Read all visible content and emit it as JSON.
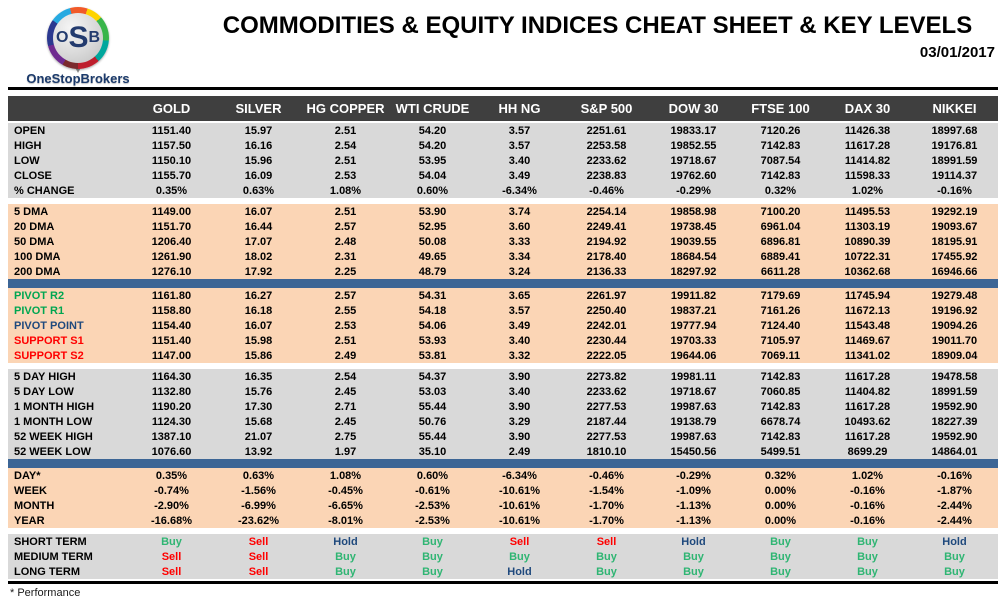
{
  "logo": {
    "o": "O",
    "s": "S",
    "b": "B",
    "brand": "OneStopBrokers"
  },
  "header": {
    "title": "COMMODITIES & EQUITY INDICES CHEAT SHEET & KEY LEVELS",
    "date": "03/01/2017"
  },
  "colors": {
    "header_bg": "#3F3F3F",
    "gray": "#D9D9D9",
    "peach": "#FBD5B5",
    "bar_blue": "#3C6595",
    "green": "#00A651",
    "signal_green": "#2FB573",
    "red": "#FF0000",
    "navy": "#1F497D"
  },
  "table": {
    "columns": [
      "GOLD",
      "SILVER",
      "HG COPPER",
      "WTI CRUDE",
      "HH NG",
      "S&P 500",
      "DOW 30",
      "FTSE 100",
      "DAX 30",
      "NIKKEI"
    ],
    "signal_colors": {
      "Buy": "signal_green",
      "Sell": "red",
      "Hold": "navy"
    },
    "sections": [
      {
        "id": "price",
        "bg": "gray",
        "after": "gap",
        "rows": [
          {
            "label": "OPEN",
            "values": [
              "1151.40",
              "15.97",
              "2.51",
              "54.20",
              "3.57",
              "2251.61",
              "19833.17",
              "7120.26",
              "11426.38",
              "18997.68"
            ]
          },
          {
            "label": "HIGH",
            "values": [
              "1157.50",
              "16.16",
              "2.54",
              "54.20",
              "3.57",
              "2253.58",
              "19852.55",
              "7142.83",
              "11617.28",
              "19176.81"
            ]
          },
          {
            "label": "LOW",
            "values": [
              "1150.10",
              "15.96",
              "2.51",
              "53.95",
              "3.40",
              "2233.62",
              "19718.67",
              "7087.54",
              "11414.82",
              "18991.59"
            ]
          },
          {
            "label": "CLOSE",
            "values": [
              "1155.70",
              "16.09",
              "2.53",
              "54.04",
              "3.49",
              "2238.83",
              "19762.60",
              "7142.83",
              "11598.33",
              "19114.37"
            ]
          },
          {
            "label": "% CHANGE",
            "values": [
              "0.35%",
              "0.63%",
              "1.08%",
              "0.60%",
              "-6.34%",
              "-0.46%",
              "-0.29%",
              "0.32%",
              "1.02%",
              "-0.16%"
            ]
          }
        ]
      },
      {
        "id": "dma",
        "bg": "peach",
        "after": "bar",
        "rows": [
          {
            "label": "5 DMA",
            "values": [
              "1149.00",
              "16.07",
              "2.51",
              "53.90",
              "3.74",
              "2254.14",
              "19858.98",
              "7100.20",
              "11495.53",
              "19292.19"
            ]
          },
          {
            "label": "20 DMA",
            "values": [
              "1151.70",
              "16.44",
              "2.57",
              "52.95",
              "3.60",
              "2249.41",
              "19738.45",
              "6961.04",
              "11303.19",
              "19093.67"
            ]
          },
          {
            "label": "50 DMA",
            "values": [
              "1206.40",
              "17.07",
              "2.48",
              "50.08",
              "3.33",
              "2194.92",
              "19039.55",
              "6896.81",
              "10890.39",
              "18195.91"
            ]
          },
          {
            "label": "100 DMA",
            "values": [
              "1261.90",
              "18.02",
              "2.31",
              "49.65",
              "3.34",
              "2178.40",
              "18684.54",
              "6889.41",
              "10722.31",
              "17455.92"
            ]
          },
          {
            "label": "200 DMA",
            "values": [
              "1276.10",
              "17.92",
              "2.25",
              "48.79",
              "3.24",
              "2136.33",
              "18297.92",
              "6611.28",
              "10362.68",
              "16946.66"
            ]
          }
        ]
      },
      {
        "id": "pivots",
        "bg": "peach",
        "after": "gap",
        "rows": [
          {
            "label": "PIVOT R2",
            "label_color": "green",
            "values": [
              "1161.80",
              "16.27",
              "2.57",
              "54.31",
              "3.65",
              "2261.97",
              "19911.82",
              "7179.69",
              "11745.94",
              "19279.48"
            ]
          },
          {
            "label": "PIVOT R1",
            "label_color": "green",
            "values": [
              "1158.80",
              "16.18",
              "2.55",
              "54.18",
              "3.57",
              "2250.40",
              "19837.21",
              "7161.26",
              "11672.13",
              "19196.92"
            ]
          },
          {
            "label": "PIVOT POINT",
            "label_color": "navy",
            "values": [
              "1154.40",
              "16.07",
              "2.53",
              "54.06",
              "3.49",
              "2242.01",
              "19777.94",
              "7124.40",
              "11543.48",
              "19094.26"
            ]
          },
          {
            "label": "SUPPORT S1",
            "label_color": "red",
            "values": [
              "1151.40",
              "15.98",
              "2.51",
              "53.93",
              "3.40",
              "2230.44",
              "19703.33",
              "7105.97",
              "11469.67",
              "19011.70"
            ]
          },
          {
            "label": "SUPPORT S2",
            "label_color": "red",
            "values": [
              "1147.00",
              "15.86",
              "2.49",
              "53.81",
              "3.32",
              "2222.05",
              "19644.06",
              "7069.11",
              "11341.02",
              "18909.04"
            ]
          }
        ]
      },
      {
        "id": "ranges",
        "bg": "gray",
        "after": "bar",
        "rows": [
          {
            "label": "5 DAY HIGH",
            "values": [
              "1164.30",
              "16.35",
              "2.54",
              "54.37",
              "3.90",
              "2273.82",
              "19981.11",
              "7142.83",
              "11617.28",
              "19478.58"
            ]
          },
          {
            "label": "5 DAY LOW",
            "values": [
              "1132.80",
              "15.76",
              "2.45",
              "53.03",
              "3.40",
              "2233.62",
              "19718.67",
              "7060.85",
              "11404.82",
              "18991.59"
            ]
          },
          {
            "label": "1 MONTH HIGH",
            "values": [
              "1190.20",
              "17.30",
              "2.71",
              "55.44",
              "3.90",
              "2277.53",
              "19987.63",
              "7142.83",
              "11617.28",
              "19592.90"
            ]
          },
          {
            "label": "1 MONTH LOW",
            "values": [
              "1124.30",
              "15.68",
              "2.45",
              "50.76",
              "3.29",
              "2187.44",
              "19138.79",
              "6678.74",
              "10493.62",
              "18227.39"
            ]
          },
          {
            "label": "52 WEEK HIGH",
            "values": [
              "1387.10",
              "21.07",
              "2.75",
              "55.44",
              "3.90",
              "2277.53",
              "19987.63",
              "7142.83",
              "11617.28",
              "19592.90"
            ]
          },
          {
            "label": "52 WEEK LOW",
            "values": [
              "1076.60",
              "13.92",
              "1.97",
              "35.10",
              "2.49",
              "1810.10",
              "15450.56",
              "5499.51",
              "8699.29",
              "14864.01"
            ]
          }
        ]
      },
      {
        "id": "performance",
        "bg": "peach",
        "after": "gap",
        "rows": [
          {
            "label": "DAY*",
            "values": [
              "0.35%",
              "0.63%",
              "1.08%",
              "0.60%",
              "-6.34%",
              "-0.46%",
              "-0.29%",
              "0.32%",
              "1.02%",
              "-0.16%"
            ]
          },
          {
            "label": "WEEK",
            "values": [
              "-0.74%",
              "-1.56%",
              "-0.45%",
              "-0.61%",
              "-10.61%",
              "-1.54%",
              "-1.09%",
              "0.00%",
              "-0.16%",
              "-1.87%"
            ]
          },
          {
            "label": "MONTH",
            "values": [
              "-2.90%",
              "-6.99%",
              "-6.65%",
              "-2.53%",
              "-10.61%",
              "-1.70%",
              "-1.13%",
              "0.00%",
              "-0.16%",
              "-2.44%"
            ]
          },
          {
            "label": "YEAR",
            "values": [
              "-16.68%",
              "-23.62%",
              "-8.01%",
              "-2.53%",
              "-10.61%",
              "-1.70%",
              "-1.13%",
              "0.00%",
              "-0.16%",
              "-2.44%"
            ]
          }
        ]
      },
      {
        "id": "signals",
        "bg": "gray",
        "after": "none",
        "signals": true,
        "rows": [
          {
            "label": "SHORT TERM",
            "values": [
              "Buy",
              "Sell",
              "Hold",
              "Buy",
              "Sell",
              "Sell",
              "Hold",
              "Buy",
              "Buy",
              "Hold"
            ]
          },
          {
            "label": "MEDIUM TERM",
            "values": [
              "Sell",
              "Sell",
              "Buy",
              "Buy",
              "Buy",
              "Buy",
              "Buy",
              "Buy",
              "Buy",
              "Buy"
            ]
          },
          {
            "label": "LONG TERM",
            "values": [
              "Sell",
              "Sell",
              "Buy",
              "Buy",
              "Hold",
              "Buy",
              "Buy",
              "Buy",
              "Buy",
              "Buy"
            ]
          }
        ]
      }
    ]
  },
  "footer": {
    "note": "* Performance"
  }
}
